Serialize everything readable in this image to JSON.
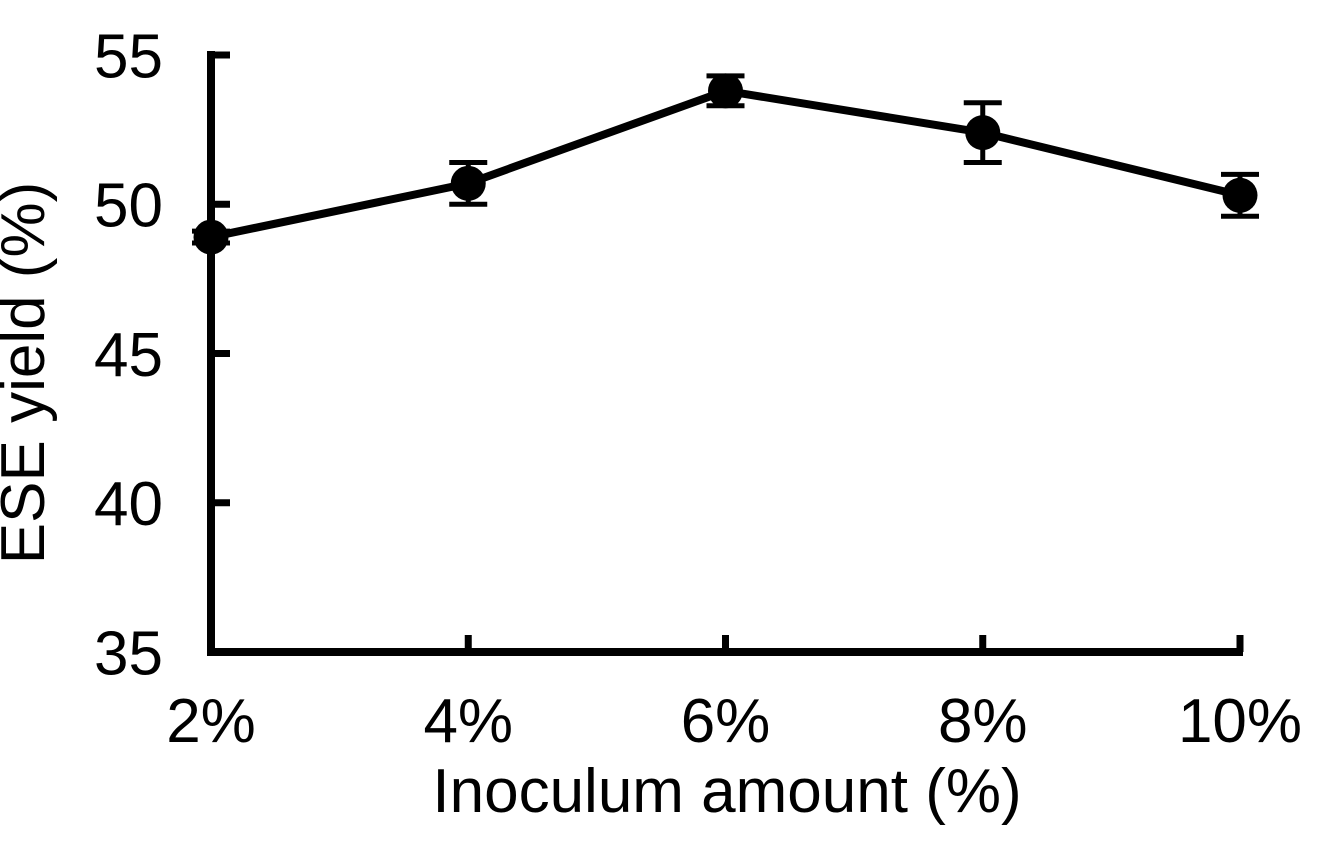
{
  "chart_data": {
    "type": "line",
    "title": "",
    "categories": [
      "2%",
      "4%",
      "6%",
      "8%",
      "10%"
    ],
    "series": [
      {
        "name": "ESE yield",
        "values": [
          48.9,
          50.7,
          53.8,
          52.4,
          50.3
        ],
        "errors": [
          0.2,
          0.7,
          0.5,
          1.0,
          0.7
        ]
      }
    ],
    "xlabel": "Inoculum amount (%)",
    "ylabel": "ESE yield (%)",
    "ylim": [
      35,
      55
    ],
    "yticks": [
      35,
      40,
      45,
      50,
      55
    ],
    "grid": false,
    "legend": "none",
    "marker": "filled-circle",
    "line_color": "#000000",
    "axis_color": "#000000",
    "background": "#ffffff"
  }
}
